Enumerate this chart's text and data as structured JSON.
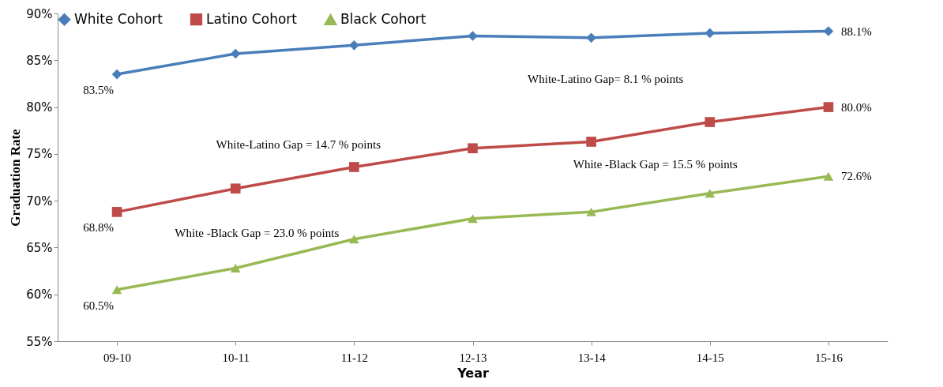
{
  "chart_data": {
    "type": "line",
    "xlabel": "Year",
    "ylabel": "Graduation Rate",
    "categories": [
      "09-10",
      "10-11",
      "11-12",
      "12-13",
      "13-14",
      "14-15",
      "15-16"
    ],
    "ylim": [
      55,
      90
    ],
    "yticks": [
      {
        "value": 55,
        "label": "55%"
      },
      {
        "value": 60,
        "label": "60%"
      },
      {
        "value": 65,
        "label": "65%"
      },
      {
        "value": 70,
        "label": "70%"
      },
      {
        "value": 75,
        "label": "75%"
      },
      {
        "value": 80,
        "label": "80%"
      },
      {
        "value": 85,
        "label": "85%"
      },
      {
        "value": 90,
        "label": "90%"
      }
    ],
    "grid": false,
    "legend": "top",
    "line_style": "solid",
    "series": [
      {
        "name": "White Cohort",
        "color": "#4a7ebb",
        "marker": "diamond",
        "values": [
          83.5,
          85.7,
          86.6,
          87.6,
          87.4,
          87.9,
          88.1
        ],
        "value_labels": [
          "83.5%",
          null,
          null,
          null,
          null,
          null,
          "88.1%"
        ]
      },
      {
        "name": "Latino Cohort",
        "color": "#be4b48",
        "marker": "square",
        "values": [
          68.8,
          71.3,
          73.6,
          75.6,
          76.3,
          78.4,
          80.0
        ],
        "value_labels": [
          "68.8%",
          null,
          null,
          null,
          null,
          null,
          "80.0%"
        ]
      },
      {
        "name": "Black Cohort",
        "color": "#98b954",
        "marker": "triangle",
        "values": [
          60.5,
          62.8,
          65.9,
          68.1,
          68.8,
          70.8,
          72.6
        ],
        "value_labels": [
          "60.5%",
          null,
          null,
          null,
          null,
          null,
          "72.6%"
        ]
      }
    ],
    "annotations": [
      "White-Latino Gap = 14.7  % points",
      "White -Black Gap = 23.0 % points",
      "White-Latino Gap= 8.1 % points",
      "White -Black Gap = 15.5  % points"
    ]
  }
}
